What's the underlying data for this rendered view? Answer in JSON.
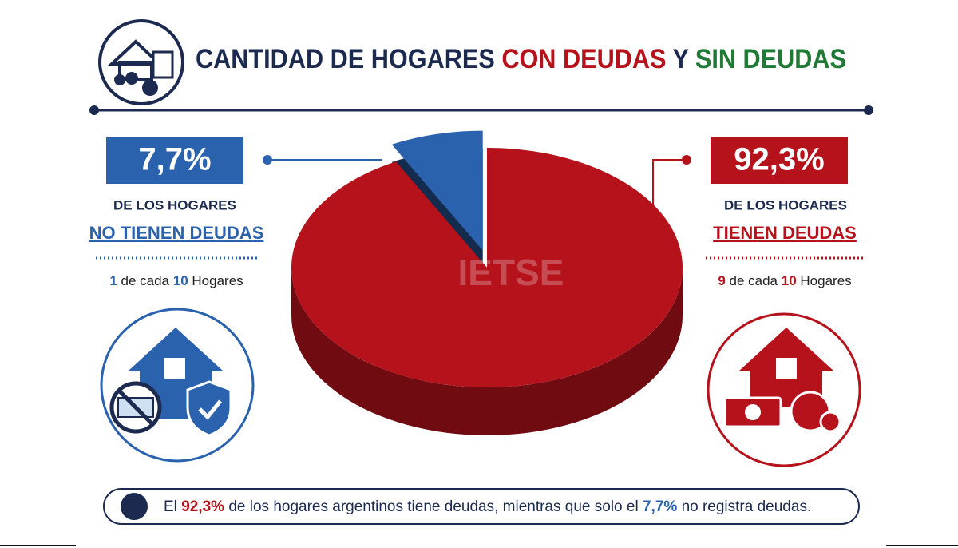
{
  "chart_data": {
    "type": "pie",
    "title": [
      "CANTIDAD DE HOGARES",
      "CON DEUDAS",
      "Y",
      "SIN DEUDAS"
    ],
    "categories": [
      "NO TIENEN DEUDAS",
      "TIENEN DEUDAS"
    ],
    "values": [
      7.7,
      92.3
    ],
    "value_labels": [
      "7,7%",
      "92,3%"
    ],
    "colors": [
      "#2a62ad",
      "#b5121b"
    ],
    "watermark": "IETSE"
  },
  "panels": [
    {
      "subtitle": "DE LOS HOGARES",
      "ratio": [
        "1",
        "de cada",
        "10",
        "Hogares"
      ]
    },
    {
      "subtitle": "DE LOS HOGARES",
      "ratio": [
        "9",
        "de cada",
        "10",
        "Hogares"
      ]
    }
  ],
  "footer": [
    "El",
    "de los hogares argentinos tiene deudas, mientras que solo el",
    "no registra deudas."
  ]
}
